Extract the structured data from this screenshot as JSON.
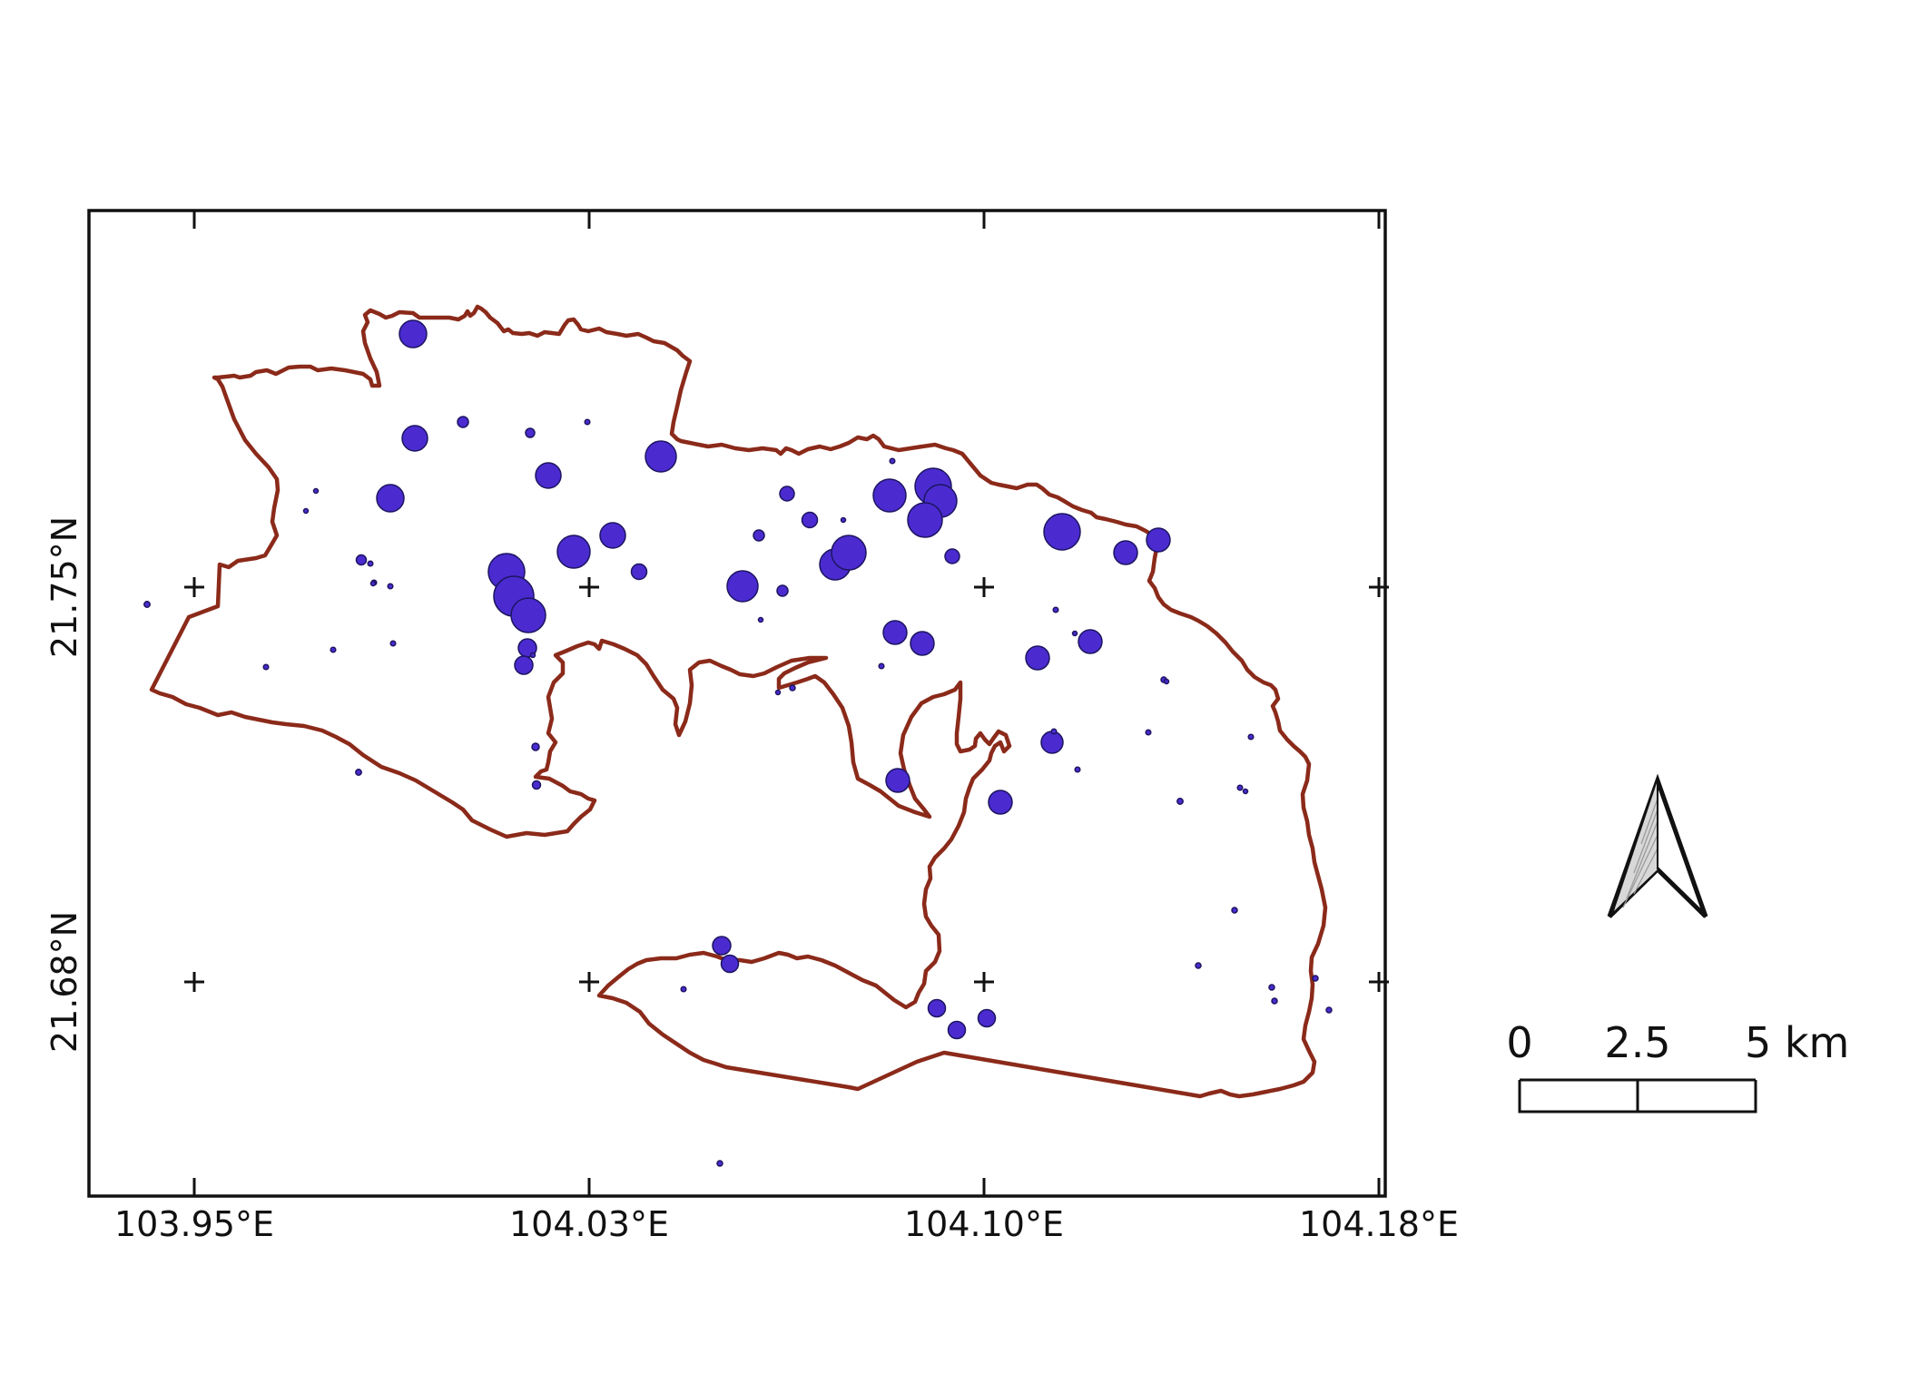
{
  "map": {
    "lon_ticks": [
      {
        "value": 103.95,
        "label": "103.95°E"
      },
      {
        "value": 104.03,
        "label": "104.03°E"
      },
      {
        "value": 104.1,
        "label": "104.10°E"
      },
      {
        "value": 104.18,
        "label": "104.18°E"
      }
    ],
    "lat_ticks": [
      {
        "value": 21.75,
        "label": "21.75°N"
      },
      {
        "value": 21.68,
        "label": "21.68°N"
      }
    ],
    "colors": {
      "boundary": "#8b2a1a",
      "point_fill": "#4b2bd0",
      "point_stroke": "#1c1560",
      "frame": "#111111"
    },
    "north_arrow": {
      "icon": "north-arrow-icon"
    },
    "scale_bar": {
      "labels": [
        "0",
        "2.5",
        "5 km"
      ]
    }
  }
}
